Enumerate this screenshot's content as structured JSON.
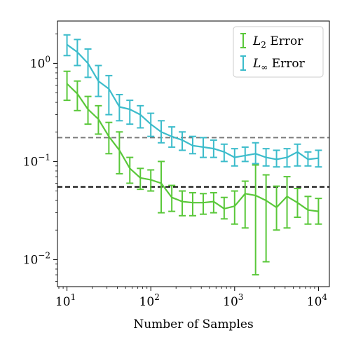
{
  "chart_data": {
    "type": "line",
    "xlabel": "Number of Samples",
    "ylabel": "",
    "xscale": "log",
    "yscale": "log",
    "xlim": [
      7.7,
      13500
    ],
    "ylim": [
      0.0053,
      2.7
    ],
    "grid": false,
    "legend_position": "top-right",
    "x": [
      10,
      13.3,
      17.8,
      23.7,
      31.6,
      42.2,
      56.2,
      75.0,
      100,
      133,
      178,
      237,
      316,
      422,
      562,
      750,
      1000,
      1334,
      1778,
      2371,
      3162,
      4217,
      5623,
      7499,
      10000
    ],
    "series": [
      {
        "name": "L2 Error",
        "legend_main": "L",
        "legend_sub": "2",
        "legend_suffix": " Error",
        "color": "#5ac83a",
        "values": [
          0.62,
          0.49,
          0.34,
          0.27,
          0.18,
          0.13,
          0.085,
          0.068,
          0.065,
          0.06,
          0.043,
          0.039,
          0.038,
          0.038,
          0.039,
          0.033,
          0.035,
          0.047,
          0.045,
          0.04,
          0.034,
          0.044,
          0.038,
          0.032,
          0.031
        ],
        "lower": [
          0.42,
          0.33,
          0.24,
          0.19,
          0.12,
          0.075,
          0.06,
          0.052,
          0.05,
          0.03,
          0.031,
          0.028,
          0.028,
          0.029,
          0.03,
          0.026,
          0.023,
          0.021,
          0.007,
          0.0095,
          0.02,
          0.021,
          0.027,
          0.023,
          0.023
        ],
        "upper": [
          0.83,
          0.66,
          0.46,
          0.37,
          0.25,
          0.2,
          0.11,
          0.085,
          0.082,
          0.1,
          0.057,
          0.05,
          0.048,
          0.047,
          0.048,
          0.043,
          0.05,
          0.063,
          0.092,
          0.073,
          0.056,
          0.07,
          0.053,
          0.044,
          0.042
        ]
      },
      {
        "name": "L∞ Error",
        "legend_main": "L",
        "legend_sub": "∞",
        "legend_suffix": " Error",
        "color": "#3cbccb",
        "values": [
          1.55,
          1.3,
          1.0,
          0.66,
          0.55,
          0.36,
          0.34,
          0.3,
          0.24,
          0.2,
          0.18,
          0.165,
          0.145,
          0.14,
          0.135,
          0.125,
          0.11,
          0.115,
          0.12,
          0.11,
          0.105,
          0.11,
          0.125,
          0.105,
          0.108
        ],
        "lower": [
          1.2,
          0.95,
          0.72,
          0.46,
          0.3,
          0.26,
          0.24,
          0.22,
          0.18,
          0.155,
          0.14,
          0.13,
          0.12,
          0.11,
          0.11,
          0.1,
          0.09,
          0.1,
          0.095,
          0.09,
          0.088,
          0.088,
          0.09,
          0.09,
          0.088
        ],
        "upper": [
          1.95,
          1.75,
          1.4,
          0.95,
          0.75,
          0.48,
          0.42,
          0.37,
          0.31,
          0.26,
          0.225,
          0.2,
          0.18,
          0.175,
          0.165,
          0.15,
          0.135,
          0.14,
          0.155,
          0.135,
          0.13,
          0.135,
          0.15,
          0.125,
          0.13
        ]
      }
    ],
    "reference_lines": [
      {
        "y": 0.175,
        "color": "#7a7a7a",
        "style": "dashed"
      },
      {
        "y": 0.055,
        "color": "#000000",
        "style": "dashed"
      }
    ],
    "x_ticks": [
      {
        "value": 10,
        "base": "10",
        "exp": "1"
      },
      {
        "value": 100,
        "base": "10",
        "exp": "2"
      },
      {
        "value": 1000,
        "base": "10",
        "exp": "3"
      },
      {
        "value": 10000,
        "base": "10",
        "exp": "4"
      }
    ],
    "y_ticks": [
      {
        "value": 0.01,
        "base": "10",
        "exp": "−2"
      },
      {
        "value": 0.1,
        "base": "10",
        "exp": "−1"
      },
      {
        "value": 1,
        "base": "10",
        "exp": "0"
      }
    ]
  }
}
